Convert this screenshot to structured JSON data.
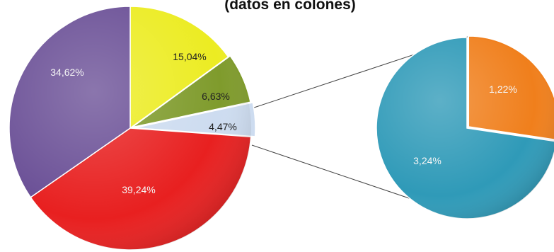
{
  "chart_data": {
    "type": "pie",
    "subtype": "pie-of-pie",
    "title": "(datos en colones)",
    "main_pie": {
      "slices": [
        {
          "label": "15,04%",
          "value": 15.04,
          "color": "#ecec22"
        },
        {
          "label": "6,63%",
          "value": 6.63,
          "color": "#7f9b2c"
        },
        {
          "label": "4,47%",
          "value": 4.47,
          "color": "#cddcf0",
          "aggregate": true
        },
        {
          "label": "39,24%",
          "value": 39.24,
          "color": "#e82020"
        },
        {
          "label": "34,62%",
          "value": 34.62,
          "color": "#6a4f96"
        }
      ]
    },
    "secondary_pie": {
      "slices": [
        {
          "label": "1,22%",
          "value": 1.22,
          "color": "#f07f1c"
        },
        {
          "label": "3,24%",
          "value": 3.24,
          "color": "#2f9ab8"
        }
      ]
    },
    "legend": "none",
    "text_colors": {
      "dark": "#222222",
      "light": "#f5f5f5"
    }
  }
}
